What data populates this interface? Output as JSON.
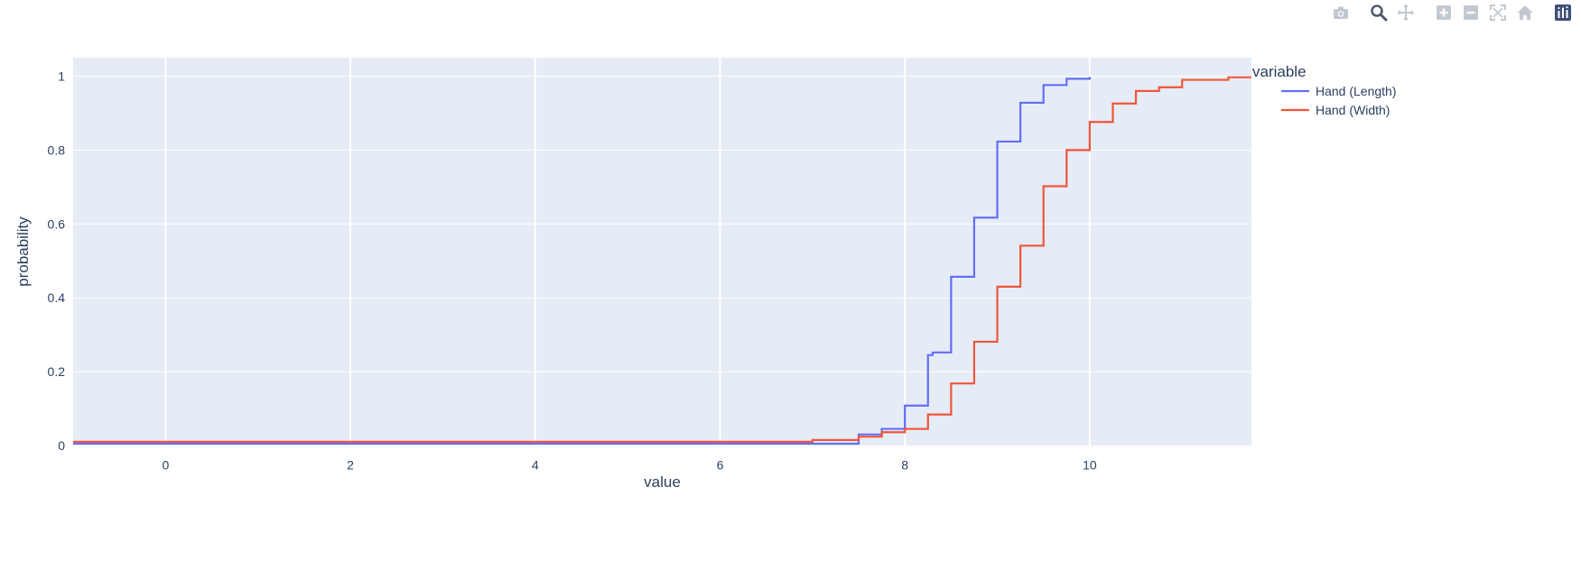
{
  "modebar": {
    "buttons": [
      {
        "name": "camera-icon"
      },
      {
        "name": "zoom-icon"
      },
      {
        "name": "pan-icon"
      },
      {
        "name": "zoom-in-icon"
      },
      {
        "name": "zoom-out-icon"
      },
      {
        "name": "autoscale-icon"
      },
      {
        "name": "home-icon"
      },
      {
        "name": "plotly-logo-icon"
      }
    ]
  },
  "chart_data": {
    "type": "line",
    "line_shape": "step",
    "xlabel": "value",
    "ylabel": "probability",
    "xlim": [
      -1,
      11.75
    ],
    "ylim": [
      0,
      1.05
    ],
    "x_ticks": [
      0,
      2,
      4,
      6,
      8,
      10
    ],
    "y_ticks": [
      0,
      0.2,
      0.4,
      0.6,
      0.8,
      1
    ],
    "y_tick_labels": [
      "0",
      "0.2",
      "0.4",
      "0.6",
      "0.8",
      "1"
    ],
    "grid": true,
    "legend": {
      "title": "variable",
      "placement": "right"
    },
    "series": [
      {
        "name": "Hand (Length)",
        "color": "#636efa",
        "points": [
          [
            -1,
            0.005
          ],
          [
            7.5,
            0.005
          ],
          [
            7.5,
            0.03
          ],
          [
            7.75,
            0.03
          ],
          [
            7.75,
            0.045
          ],
          [
            8.0,
            0.045
          ],
          [
            8.0,
            0.108
          ],
          [
            8.25,
            0.108
          ],
          [
            8.25,
            0.245
          ],
          [
            8.3,
            0.245
          ],
          [
            8.3,
            0.252
          ],
          [
            8.5,
            0.252
          ],
          [
            8.5,
            0.457
          ],
          [
            8.75,
            0.457
          ],
          [
            8.75,
            0.617
          ],
          [
            9.0,
            0.617
          ],
          [
            9.0,
            0.823
          ],
          [
            9.25,
            0.823
          ],
          [
            9.25,
            0.928
          ],
          [
            9.5,
            0.928
          ],
          [
            9.5,
            0.976
          ],
          [
            9.75,
            0.976
          ],
          [
            9.75,
            0.993
          ],
          [
            10.0,
            0.993
          ],
          [
            10.0,
            0.998
          ]
        ]
      },
      {
        "name": "Hand (Width)",
        "color": "#ef553b",
        "points": [
          [
            -1,
            0.01
          ],
          [
            7.0,
            0.01
          ],
          [
            7.0,
            0.015
          ],
          [
            7.5,
            0.015
          ],
          [
            7.5,
            0.024
          ],
          [
            7.75,
            0.024
          ],
          [
            7.75,
            0.036
          ],
          [
            8.0,
            0.036
          ],
          [
            8.0,
            0.045
          ],
          [
            8.25,
            0.045
          ],
          [
            8.25,
            0.084
          ],
          [
            8.5,
            0.084
          ],
          [
            8.5,
            0.168
          ],
          [
            8.75,
            0.168
          ],
          [
            8.75,
            0.281
          ],
          [
            9.0,
            0.281
          ],
          [
            9.0,
            0.43
          ],
          [
            9.25,
            0.43
          ],
          [
            9.25,
            0.541
          ],
          [
            9.5,
            0.541
          ],
          [
            9.5,
            0.702
          ],
          [
            9.75,
            0.702
          ],
          [
            9.75,
            0.8
          ],
          [
            10.0,
            0.8
          ],
          [
            10.0,
            0.876
          ],
          [
            10.25,
            0.876
          ],
          [
            10.25,
            0.926
          ],
          [
            10.5,
            0.926
          ],
          [
            10.5,
            0.96
          ],
          [
            10.75,
            0.96
          ],
          [
            10.75,
            0.97
          ],
          [
            11.0,
            0.97
          ],
          [
            11.0,
            0.99
          ],
          [
            11.5,
            0.99
          ],
          [
            11.5,
            0.997
          ],
          [
            11.75,
            0.997
          ]
        ]
      }
    ]
  }
}
